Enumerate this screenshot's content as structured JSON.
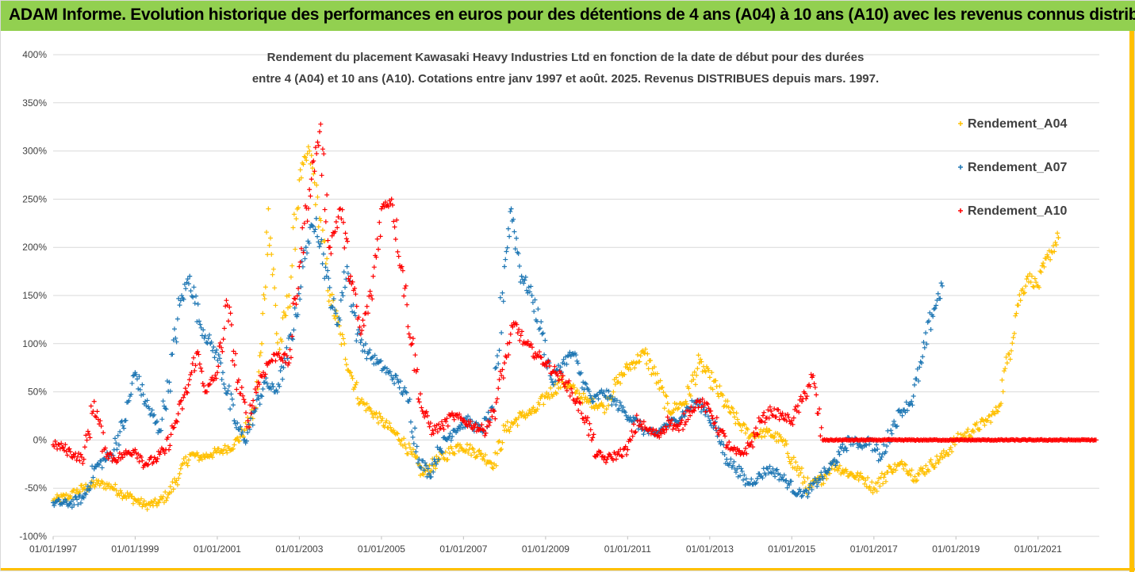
{
  "banner": {
    "title": "ADAM Informe. Evolution historique des performances en euros pour des détentions de 4 ans (A04) à 10 ans (A10) avec les revenus connus distribués"
  },
  "colors": {
    "banner_bg": "#92d050",
    "accent": "#ffc000",
    "A04": "#ffc000",
    "A07": "#1f77b4",
    "A10": "#ff0000",
    "grid": "#d9d9d9"
  },
  "chart_data": {
    "type": "scatter",
    "title_lines": [
      "Rendement du placement Kawasaki Heavy Industries Ltd en fonction de la date de début pour des durées",
      "entre 4 (A04) et 10 ans (A10). Cotations entre janv 1997 et août. 2025. Revenus DISTRIBUES depuis mars. 1997."
    ],
    "xlabel": "",
    "ylabel": "",
    "x_range": [
      "1997-01-01",
      "2022-06-30"
    ],
    "ylim": [
      -100,
      400
    ],
    "y_unit": "%",
    "grid": "horizontal",
    "legend_position": "top-right",
    "x_ticks": [
      "01/01/1997",
      "01/01/1999",
      "01/01/2001",
      "01/01/2003",
      "01/01/2005",
      "01/01/2007",
      "01/01/2009",
      "01/01/2011",
      "01/01/2013",
      "01/01/2015",
      "01/01/2017",
      "01/01/2019",
      "01/01/2021"
    ],
    "y_ticks": [
      "400%",
      "350%",
      "300%",
      "250%",
      "200%",
      "150%",
      "100%",
      "50%",
      "0%",
      "-50%",
      "-100%"
    ],
    "y_tick_values": [
      400,
      350,
      300,
      250,
      200,
      150,
      100,
      50,
      0,
      -50,
      -100
    ],
    "series": [
      {
        "name": "Rendement_A04",
        "color": "#ffc000",
        "points": [
          [
            "1997-01-01",
            -63
          ],
          [
            "1997-06-01",
            -58
          ],
          [
            "1997-10-01",
            -50
          ],
          [
            "1998-02-01",
            -45
          ],
          [
            "1998-06-01",
            -48
          ],
          [
            "1998-09-01",
            -55
          ],
          [
            "1999-01-01",
            -62
          ],
          [
            "1999-04-01",
            -68
          ],
          [
            "1999-08-01",
            -65
          ],
          [
            "1999-11-01",
            -55
          ],
          [
            "2000-02-01",
            -35
          ],
          [
            "2000-05-01",
            -15
          ],
          [
            "2000-08-01",
            -18
          ],
          [
            "2000-11-01",
            -15
          ],
          [
            "2001-03-01",
            -10
          ],
          [
            "2001-06-01",
            -5
          ],
          [
            "2001-09-01",
            10
          ],
          [
            "2001-12-01",
            30
          ],
          [
            "2002-02-01",
            100
          ],
          [
            "2002-04-01",
            240
          ],
          [
            "2002-07-01",
            90
          ],
          [
            "2002-10-01",
            150
          ],
          [
            "2003-01-01",
            270
          ],
          [
            "2003-04-01",
            300
          ],
          [
            "2003-07-01",
            230
          ],
          [
            "2003-10-01",
            150
          ],
          [
            "2004-01-01",
            110
          ],
          [
            "2004-04-01",
            70
          ],
          [
            "2004-07-01",
            40
          ],
          [
            "2004-10-01",
            30
          ],
          [
            "2005-01-01",
            20
          ],
          [
            "2005-04-01",
            10
          ],
          [
            "2005-07-01",
            0
          ],
          [
            "2005-10-01",
            -15
          ],
          [
            "2006-01-01",
            -35
          ],
          [
            "2006-06-01",
            -20
          ],
          [
            "2006-12-01",
            -5
          ],
          [
            "2007-06-01",
            -15
          ],
          [
            "2007-10-01",
            -25
          ],
          [
            "2008-01-01",
            10
          ],
          [
            "2008-06-01",
            25
          ],
          [
            "2008-10-01",
            30
          ],
          [
            "2009-01-01",
            45
          ],
          [
            "2009-06-01",
            60
          ],
          [
            "2009-10-01",
            50
          ],
          [
            "2010-01-01",
            40
          ],
          [
            "2010-06-01",
            35
          ],
          [
            "2010-10-01",
            60
          ],
          [
            "2011-01-01",
            75
          ],
          [
            "2011-06-01",
            90
          ],
          [
            "2011-10-01",
            60
          ],
          [
            "2012-01-01",
            30
          ],
          [
            "2012-06-01",
            40
          ],
          [
            "2012-10-01",
            80
          ],
          [
            "2013-01-01",
            65
          ],
          [
            "2013-06-01",
            35
          ],
          [
            "2013-10-01",
            15
          ],
          [
            "2014-01-01",
            5
          ],
          [
            "2014-06-01",
            8
          ],
          [
            "2014-10-01",
            0
          ],
          [
            "2015-01-01",
            -20
          ],
          [
            "2015-06-01",
            -50
          ],
          [
            "2015-10-01",
            -40
          ],
          [
            "2016-01-01",
            -25
          ],
          [
            "2016-06-01",
            -35
          ],
          [
            "2016-10-01",
            -40
          ],
          [
            "2017-01-01",
            -50
          ],
          [
            "2017-06-01",
            -30
          ],
          [
            "2017-10-01",
            -25
          ],
          [
            "2018-01-01",
            -38
          ],
          [
            "2018-06-01",
            -25
          ],
          [
            "2018-10-01",
            -15
          ],
          [
            "2019-01-01",
            0
          ],
          [
            "2019-06-01",
            10
          ],
          [
            "2019-10-01",
            20
          ],
          [
            "2020-01-01",
            30
          ],
          [
            "2020-04-01",
            80
          ],
          [
            "2020-07-01",
            140
          ],
          [
            "2020-10-01",
            170
          ],
          [
            "2021-01-01",
            160
          ],
          [
            "2021-04-01",
            190
          ],
          [
            "2021-07-01",
            210
          ]
        ]
      },
      {
        "name": "Rendement_A07",
        "color": "#1f77b4",
        "points": [
          [
            "1997-01-01",
            -65
          ],
          [
            "1997-06-01",
            -66
          ],
          [
            "1997-10-01",
            -60
          ],
          [
            "1998-01-01",
            -30
          ],
          [
            "1998-06-01",
            -15
          ],
          [
            "1998-10-01",
            20
          ],
          [
            "1999-01-01",
            70
          ],
          [
            "1999-04-01",
            40
          ],
          [
            "1999-08-01",
            10
          ],
          [
            "1999-11-01",
            60
          ],
          [
            "2000-02-01",
            140
          ],
          [
            "2000-05-01",
            170
          ],
          [
            "2000-08-01",
            120
          ],
          [
            "2000-11-01",
            100
          ],
          [
            "2001-02-01",
            80
          ],
          [
            "2001-06-01",
            20
          ],
          [
            "2001-09-01",
            0
          ],
          [
            "2001-12-01",
            30
          ],
          [
            "2002-03-01",
            60
          ],
          [
            "2002-06-01",
            50
          ],
          [
            "2002-09-01",
            80
          ],
          [
            "2002-12-01",
            130
          ],
          [
            "2003-03-01",
            200
          ],
          [
            "2003-06-01",
            230
          ],
          [
            "2003-09-01",
            170
          ],
          [
            "2003-12-01",
            120
          ],
          [
            "2004-03-01",
            180
          ],
          [
            "2004-06-01",
            110
          ],
          [
            "2004-09-01",
            90
          ],
          [
            "2004-12-01",
            80
          ],
          [
            "2005-03-01",
            70
          ],
          [
            "2005-06-01",
            60
          ],
          [
            "2005-09-01",
            40
          ],
          [
            "2005-12-01",
            -20
          ],
          [
            "2006-03-01",
            -35
          ],
          [
            "2006-06-01",
            -10
          ],
          [
            "2006-10-01",
            10
          ],
          [
            "2007-02-01",
            20
          ],
          [
            "2007-06-01",
            10
          ],
          [
            "2007-10-01",
            30
          ],
          [
            "2008-01-01",
            180
          ],
          [
            "2008-03-01",
            240
          ],
          [
            "2008-06-01",
            170
          ],
          [
            "2008-09-01",
            150
          ],
          [
            "2008-12-01",
            110
          ],
          [
            "2009-03-01",
            60
          ],
          [
            "2009-06-01",
            80
          ],
          [
            "2009-09-01",
            90
          ],
          [
            "2009-12-01",
            60
          ],
          [
            "2010-03-01",
            40
          ],
          [
            "2010-06-01",
            50
          ],
          [
            "2010-09-01",
            40
          ],
          [
            "2010-12-01",
            30
          ],
          [
            "2011-03-01",
            20
          ],
          [
            "2011-06-01",
            10
          ],
          [
            "2011-09-01",
            5
          ],
          [
            "2011-12-01",
            15
          ],
          [
            "2012-03-01",
            20
          ],
          [
            "2012-06-01",
            30
          ],
          [
            "2012-09-01",
            40
          ],
          [
            "2012-12-01",
            30
          ],
          [
            "2013-03-01",
            10
          ],
          [
            "2013-06-01",
            -20
          ],
          [
            "2013-09-01",
            -30
          ],
          [
            "2013-12-01",
            -45
          ],
          [
            "2014-03-01",
            -40
          ],
          [
            "2014-06-01",
            -30
          ],
          [
            "2014-09-01",
            -35
          ],
          [
            "2014-12-01",
            -45
          ],
          [
            "2015-03-01",
            -55
          ],
          [
            "2015-06-01",
            -55
          ],
          [
            "2015-09-01",
            -40
          ],
          [
            "2015-12-01",
            -30
          ],
          [
            "2016-03-01",
            -15
          ],
          [
            "2016-06-01",
            0
          ],
          [
            "2016-09-01",
            -5
          ],
          [
            "2016-12-01",
            0
          ],
          [
            "2017-03-01",
            -20
          ],
          [
            "2017-06-01",
            10
          ],
          [
            "2017-09-01",
            30
          ],
          [
            "2017-12-01",
            40
          ],
          [
            "2018-03-01",
            80
          ],
          [
            "2018-06-01",
            130
          ],
          [
            "2018-09-01",
            160
          ]
        ]
      },
      {
        "name": "Rendement_A10",
        "color": "#ff0000",
        "points": [
          [
            "1997-01-01",
            -5
          ],
          [
            "1997-04-01",
            -8
          ],
          [
            "1997-07-01",
            -15
          ],
          [
            "1997-10-01",
            -20
          ],
          [
            "1998-01-01",
            40
          ],
          [
            "1998-04-01",
            -10
          ],
          [
            "1998-07-01",
            -20
          ],
          [
            "1998-10-01",
            -15
          ],
          [
            "1999-01-01",
            -10
          ],
          [
            "1999-04-01",
            -25
          ],
          [
            "1999-07-01",
            -20
          ],
          [
            "1999-10-01",
            -10
          ],
          [
            "2000-01-01",
            20
          ],
          [
            "2000-04-01",
            50
          ],
          [
            "2000-07-01",
            90
          ],
          [
            "2000-10-01",
            50
          ],
          [
            "2001-01-01",
            70
          ],
          [
            "2001-04-01",
            140
          ],
          [
            "2001-07-01",
            60
          ],
          [
            "2001-10-01",
            20
          ],
          [
            "2002-01-01",
            60
          ],
          [
            "2002-04-01",
            80
          ],
          [
            "2002-07-01",
            90
          ],
          [
            "2002-10-01",
            80
          ],
          [
            "2003-01-01",
            180
          ],
          [
            "2003-04-01",
            260
          ],
          [
            "2003-07-01",
            320
          ],
          [
            "2003-10-01",
            200
          ],
          [
            "2004-01-01",
            240
          ],
          [
            "2004-04-01",
            170
          ],
          [
            "2004-07-01",
            110
          ],
          [
            "2004-10-01",
            150
          ],
          [
            "2005-01-01",
            240
          ],
          [
            "2005-04-01",
            250
          ],
          [
            "2005-07-01",
            180
          ],
          [
            "2005-10-01",
            100
          ],
          [
            "2006-01-01",
            30
          ],
          [
            "2006-04-01",
            10
          ],
          [
            "2006-07-01",
            15
          ],
          [
            "2006-10-01",
            25
          ],
          [
            "2007-01-01",
            20
          ],
          [
            "2007-04-01",
            15
          ],
          [
            "2007-07-01",
            10
          ],
          [
            "2007-10-01",
            30
          ],
          [
            "2008-01-01",
            80
          ],
          [
            "2008-04-01",
            120
          ],
          [
            "2008-07-01",
            100
          ],
          [
            "2008-10-01",
            90
          ],
          [
            "2009-01-01",
            80
          ],
          [
            "2009-04-01",
            70
          ],
          [
            "2009-07-01",
            60
          ],
          [
            "2009-10-01",
            40
          ],
          [
            "2010-01-01",
            20
          ],
          [
            "2010-04-01",
            -15
          ],
          [
            "2010-07-01",
            -20
          ],
          [
            "2010-10-01",
            -15
          ],
          [
            "2011-01-01",
            -10
          ],
          [
            "2011-04-01",
            20
          ],
          [
            "2011-07-01",
            10
          ],
          [
            "2011-10-01",
            5
          ],
          [
            "2012-01-01",
            20
          ],
          [
            "2012-04-01",
            10
          ],
          [
            "2012-07-01",
            30
          ],
          [
            "2012-10-01",
            40
          ],
          [
            "2013-01-01",
            30
          ],
          [
            "2013-04-01",
            10
          ],
          [
            "2013-07-01",
            -10
          ],
          [
            "2013-10-01",
            -15
          ],
          [
            "2014-01-01",
            -5
          ],
          [
            "2014-04-01",
            20
          ],
          [
            "2014-07-01",
            30
          ],
          [
            "2014-10-01",
            25
          ],
          [
            "2015-01-01",
            20
          ],
          [
            "2015-04-01",
            40
          ],
          [
            "2015-07-01",
            65
          ],
          [
            "2015-10-01",
            0
          ],
          [
            "2016-06-01",
            0
          ],
          [
            "2017-06-01",
            0
          ],
          [
            "2018-06-01",
            0
          ],
          [
            "2019-06-01",
            0
          ],
          [
            "2020-06-01",
            0
          ],
          [
            "2021-06-01",
            0
          ],
          [
            "2022-06-01",
            0
          ]
        ]
      }
    ]
  }
}
